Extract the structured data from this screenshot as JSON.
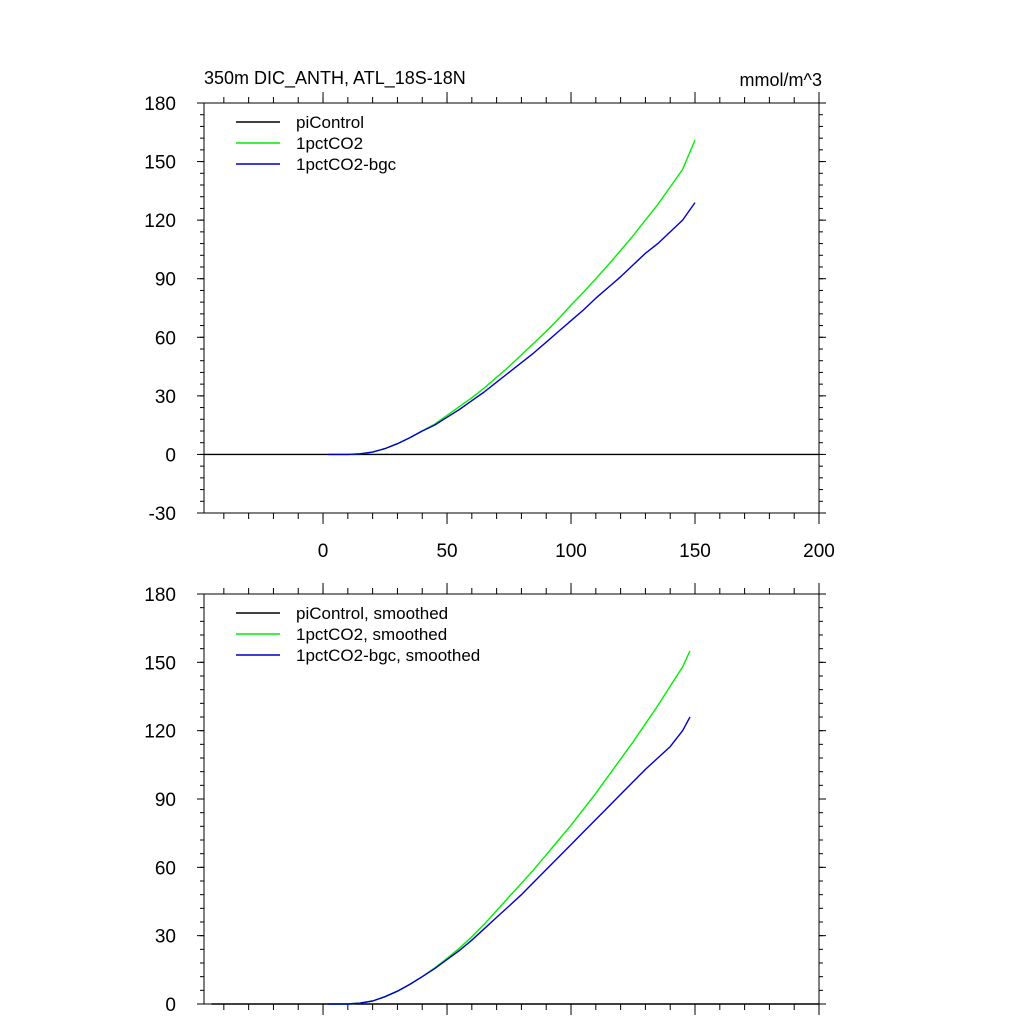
{
  "chart_data": [
    {
      "type": "line",
      "title": "350m DIC_ANTH, ATL_18S-18N",
      "units": "mmol/m^3",
      "xlim": [
        -48,
        200
      ],
      "ylim": [
        -30,
        180
      ],
      "xticks": [
        0,
        50,
        100,
        150,
        200
      ],
      "yticks": [
        -30,
        0,
        30,
        60,
        90,
        120,
        150,
        180
      ],
      "show_xtick_labels": true,
      "grid": false,
      "legend": "top-left",
      "series": [
        {
          "name": "piControl",
          "color": "#000000",
          "x": [
            -48,
            200
          ],
          "y": [
            0,
            0
          ]
        },
        {
          "name": "1pctCO2",
          "color": "#00ee00",
          "x": [
            2,
            10,
            15,
            20,
            25,
            30,
            35,
            40,
            45,
            50,
            55,
            60,
            65,
            70,
            75,
            80,
            85,
            90,
            95,
            100,
            105,
            110,
            115,
            120,
            125,
            130,
            135,
            140,
            145,
            150
          ],
          "y": [
            0,
            0,
            0.3,
            1.2,
            3,
            5.5,
            8.5,
            12,
            15.5,
            20,
            24.5,
            29,
            34,
            39.5,
            45,
            51,
            57,
            63,
            69.5,
            76.5,
            83,
            90,
            97,
            104.5,
            112,
            120,
            128,
            137,
            146,
            161
          ]
        },
        {
          "name": "1pctCO2-bgc",
          "color": "#0000cc",
          "x": [
            2,
            10,
            15,
            20,
            25,
            30,
            35,
            40,
            45,
            50,
            55,
            60,
            65,
            70,
            75,
            80,
            85,
            90,
            95,
            100,
            105,
            110,
            115,
            120,
            125,
            130,
            135,
            140,
            145,
            150
          ],
          "y": [
            0,
            0,
            0.3,
            1.2,
            3,
            5.5,
            8.5,
            12,
            15,
            19,
            23,
            27.5,
            32,
            37,
            42,
            47,
            52,
            57.5,
            63,
            68.5,
            74,
            80,
            85.5,
            91,
            97,
            103,
            108,
            114,
            120,
            129
          ]
        }
      ]
    },
    {
      "type": "line",
      "xlim": [
        -48,
        200
      ],
      "ylim": [
        0,
        180
      ],
      "xticks": [
        0,
        50,
        100,
        150,
        200
      ],
      "yticks": [
        0,
        30,
        60,
        90,
        120,
        150,
        180
      ],
      "show_xtick_labels": false,
      "grid": false,
      "legend": "top-left",
      "series": [
        {
          "name": "piControl, smoothed",
          "color": "#000000",
          "x": [
            -45,
            200
          ],
          "y": [
            0,
            0
          ]
        },
        {
          "name": "1pctCO2, smoothed",
          "color": "#00ee00",
          "x": [
            2,
            10,
            15,
            20,
            25,
            30,
            35,
            40,
            45,
            50,
            55,
            60,
            65,
            70,
            75,
            80,
            85,
            90,
            95,
            100,
            105,
            110,
            115,
            120,
            125,
            130,
            135,
            140,
            145,
            148
          ],
          "y": [
            0,
            0,
            0.4,
            1.3,
            3.2,
            5.6,
            8.6,
            12,
            15.8,
            20,
            24.5,
            29.5,
            35,
            41,
            47,
            53,
            59,
            65.5,
            72,
            78.5,
            85.5,
            92.5,
            100,
            107.5,
            115,
            123,
            131,
            139.5,
            148,
            155
          ]
        },
        {
          "name": "1pctCO2-bgc, smoothed",
          "color": "#0000cc",
          "x": [
            2,
            10,
            15,
            20,
            25,
            30,
            35,
            40,
            45,
            50,
            55,
            60,
            65,
            70,
            75,
            80,
            85,
            90,
            95,
            100,
            105,
            110,
            115,
            120,
            125,
            130,
            135,
            140,
            145,
            148
          ],
          "y": [
            0,
            0,
            0.4,
            1.3,
            3.2,
            5.6,
            8.6,
            12,
            15.5,
            19.5,
            23.5,
            28,
            33,
            38,
            43,
            48,
            53.5,
            59,
            64.5,
            70,
            75.5,
            81,
            86.5,
            92,
            97.5,
            103,
            108,
            113,
            120,
            126
          ]
        }
      ]
    }
  ]
}
